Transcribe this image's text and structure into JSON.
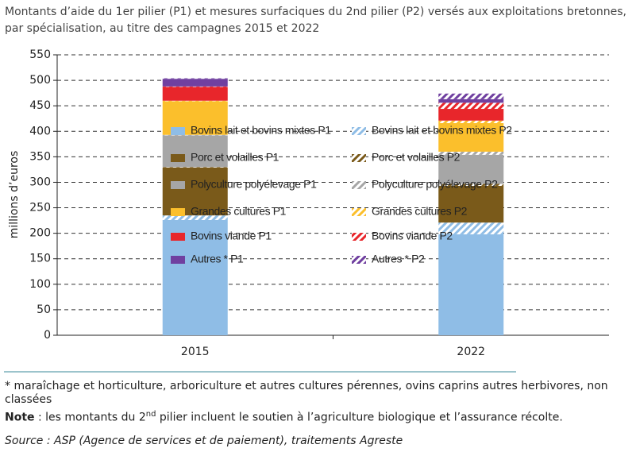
{
  "chart_data": {
    "type": "stacked-bar",
    "title": "Montants d’aide du 1er pilier (P1) et mesures surfaciques du 2nd pilier (P2) versés aux exploitations bretonnes, par spécialisation, au titre des campagnes 2015 et 2022",
    "y_label": "millions d’euros",
    "categories": [
      "2015",
      "2022"
    ],
    "series": [
      {
        "name": "Bovins lait et bovins mixtes P1",
        "color": "#8fbde6",
        "hatch": false,
        "values": [
          226,
          198
        ]
      },
      {
        "name": "Bovins lait et bovins mixtes P2",
        "color": "#8fbde6",
        "hatch": true,
        "values": [
          9,
          23
        ]
      },
      {
        "name": "Porc et volailles P1",
        "color": "#7a5a1a",
        "hatch": false,
        "values": [
          94,
          72
        ]
      },
      {
        "name": "Porc et volailles P2",
        "color": "#7a5a1a",
        "hatch": true,
        "values": [
          1,
          4
        ]
      },
      {
        "name": "Polyculture polyélevage P1",
        "color": "#a6a6a6",
        "hatch": false,
        "values": [
          62,
          57
        ]
      },
      {
        "name": "Polyculture polyélevage P2",
        "color": "#a6a6a6",
        "hatch": true,
        "values": [
          1,
          6
        ]
      },
      {
        "name": "Grandes cultures P1",
        "color": "#fbbf2c",
        "hatch": false,
        "values": [
          66,
          56
        ]
      },
      {
        "name": "Grandes cultures P2",
        "color": "#fbbf2c",
        "hatch": true,
        "values": [
          1,
          5
        ]
      },
      {
        "name": "Bovins viande P1",
        "color": "#e8262b",
        "hatch": false,
        "values": [
          27,
          23
        ]
      },
      {
        "name": "Bovins viande P2",
        "color": "#e8262b",
        "hatch": true,
        "values": [
          1,
          12
        ]
      },
      {
        "name": "Autres * P1",
        "color": "#7040a0",
        "hatch": false,
        "values": [
          15,
          7
        ]
      },
      {
        "name": "Autres * P2",
        "color": "#7040a0",
        "hatch": true,
        "values": [
          1,
          11
        ]
      }
    ],
    "ylim": [
      0,
      550
    ],
    "yticks": [
      0,
      50,
      100,
      150,
      200,
      250,
      300,
      350,
      400,
      450,
      500,
      550
    ],
    "grid": true,
    "footnotes": {
      "asterisk": "* maraîchage et horticulture, arboriculture et autres cultures pérennes, ovins caprins autres herbivores, non classées",
      "note_label": "Note",
      "note_text_1": " : les montants du 2",
      "note_sup": "nd",
      "note_text_2": " pilier incluent le soutien à l’agriculture biologique et l’assurance récolte.",
      "source": "Source : ASP (Agence de services et de paiement), traitements Agreste"
    }
  }
}
